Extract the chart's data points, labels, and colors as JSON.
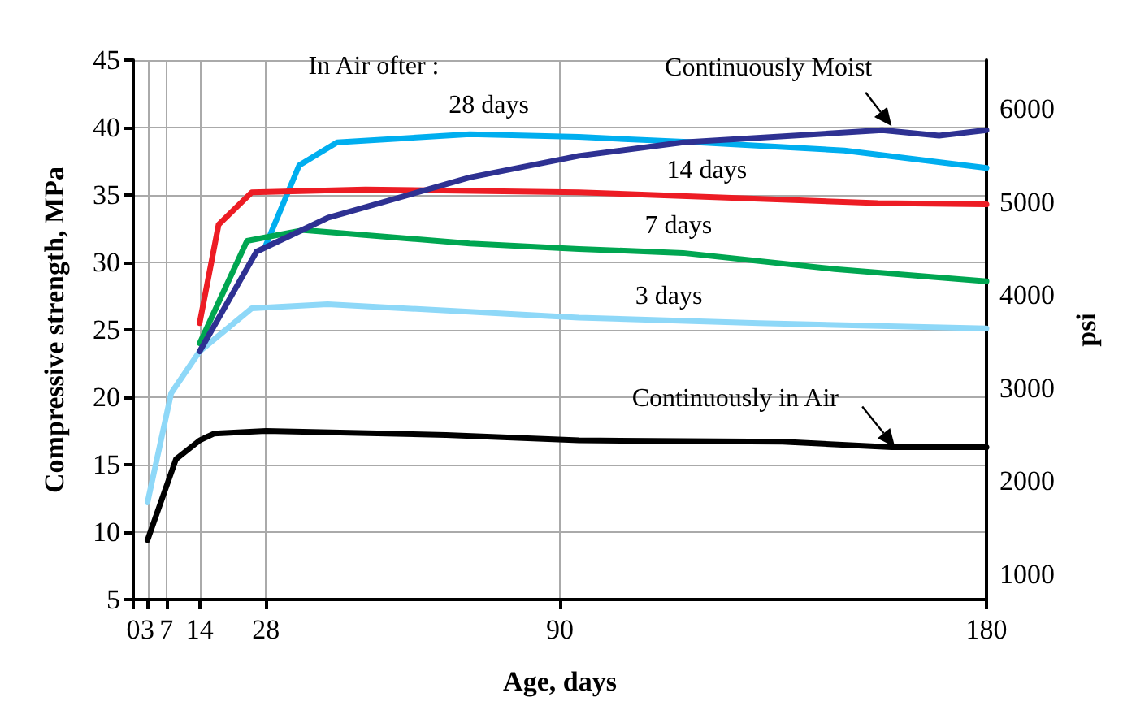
{
  "chart_data": {
    "type": "line",
    "xlabel": "Age, days",
    "ylabel": "Compressive strength, MPa",
    "y2label": "psi",
    "annotations": [
      "In Air ofter :"
    ],
    "xlim": [
      0,
      180
    ],
    "xticks": [
      0,
      3,
      7,
      14,
      28,
      90,
      180
    ],
    "ylim": [
      5,
      45
    ],
    "yticks": [
      5,
      10,
      15,
      20,
      25,
      30,
      35,
      40,
      45
    ],
    "y2lim": [
      725,
      6527
    ],
    "y2ticks": [
      1000,
      2000,
      3000,
      4000,
      5000,
      6000
    ],
    "grid": true,
    "legend": false,
    "marker": "none",
    "line_style": "solid",
    "series": [
      {
        "name": "28 days",
        "color": "#00aeef",
        "x": [
          28,
          35,
          43,
          71,
          94,
          119,
          150,
          180
        ],
        "values": [
          31.3,
          37.2,
          38.9,
          39.5,
          39.3,
          38.9,
          38.3,
          37.0
        ]
      },
      {
        "name": "14 days",
        "color": "#ed1c24",
        "x": [
          14,
          18,
          25,
          49,
          94,
          157,
          180
        ],
        "values": [
          25.5,
          32.8,
          35.2,
          35.4,
          35.2,
          34.4,
          34.3
        ]
      },
      {
        "name": "7 days",
        "color": "#00a651",
        "x": [
          14,
          24,
          36,
          71,
          94,
          116,
          148,
          180
        ],
        "values": [
          24.0,
          31.6,
          32.4,
          31.4,
          31.0,
          30.7,
          29.5,
          28.6
        ]
      },
      {
        "name": "3 days",
        "color": "#8ed8f8",
        "x": [
          3,
          8,
          14,
          25,
          41,
          94,
          132,
          180
        ],
        "values": [
          12.2,
          20.3,
          23.4,
          26.6,
          26.9,
          25.9,
          25.5,
          25.1
        ]
      },
      {
        "name": "Continuously Moist",
        "color": "#2e3192",
        "x": [
          14,
          26,
          41,
          71,
          94,
          116,
          158,
          170,
          180
        ],
        "values": [
          23.4,
          30.8,
          33.3,
          36.3,
          37.9,
          38.9,
          39.8,
          39.4,
          39.8
        ]
      },
      {
        "name": "Continuously in Air",
        "color": "#000000",
        "x": [
          3,
          9,
          14,
          17,
          28,
          66,
          94,
          137,
          160,
          180
        ],
        "values": [
          9.4,
          15.4,
          16.8,
          17.3,
          17.5,
          17.2,
          16.8,
          16.7,
          16.3,
          16.3
        ]
      }
    ]
  }
}
